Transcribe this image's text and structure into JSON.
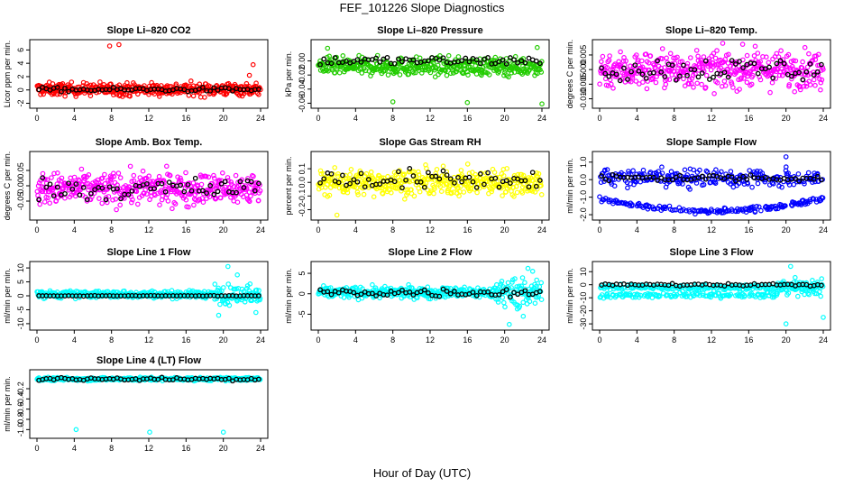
{
  "header": {
    "title": "FEF_101226  Slope Diagnostics"
  },
  "footer": {
    "xlabel": "Hour of Day (UTC)"
  },
  "chart_data": [
    {
      "type": "scatter",
      "title": "Slope Li–820 CO2",
      "ylabel": "Licor ppm per min.",
      "color": "#ff0000",
      "xlim": [
        0,
        24
      ],
      "xticks": [
        "0",
        "4",
        "8",
        "12",
        "16",
        "20",
        "24"
      ],
      "ylim": [
        -2.2,
        7
      ],
      "yticks": [
        {
          "v": -2,
          "t": "-2"
        },
        {
          "v": 0,
          "t": "0"
        },
        {
          "v": 2,
          "t": "2"
        },
        {
          "v": 4,
          "t": "4"
        },
        {
          "v": 6,
          "t": "6"
        }
      ],
      "series": [
        {
          "name": "colored",
          "center": 0.1,
          "spread": 0.9,
          "x": [
            7.8,
            8.8,
            23.2,
            22.8
          ],
          "y": [
            6.6,
            6.8,
            3.8,
            2.2
          ]
        },
        {
          "name": "black",
          "center": 0.05,
          "spread": 0.3
        }
      ]
    },
    {
      "type": "scatter",
      "title": "Slope Li–820 Pressure",
      "ylabel": "kPa per min.",
      "color": "#22cc00",
      "xlim": [
        0,
        24
      ],
      "xticks": [
        "0",
        "4",
        "8",
        "12",
        "16",
        "20",
        "24"
      ],
      "ylim": [
        -0.062,
        0.025
      ],
      "yticks": [
        {
          "v": -0.06,
          "t": "-0.06"
        },
        {
          "v": -0.04,
          "t": "-0.04"
        },
        {
          "v": -0.02,
          "t": "-0.02"
        },
        {
          "v": 0.0,
          "t": "0.00"
        }
      ],
      "series": [
        {
          "name": "colored",
          "center": -0.008,
          "spread": 0.012,
          "x": [
            8.0,
            16.0,
            24.0,
            1.0,
            23.5
          ],
          "y": [
            -0.058,
            -0.059,
            -0.061,
            0.018,
            0.019
          ]
        },
        {
          "name": "black",
          "center": 0.0,
          "spread": 0.006
        }
      ]
    },
    {
      "type": "scatter",
      "title": "Slope Li–820 Temp.",
      "ylabel": "degrees C per min.",
      "color": "#ff00ff",
      "xlim": [
        0,
        24
      ],
      "xticks": [
        "0",
        "4",
        "8",
        "12",
        "16",
        "20",
        "24"
      ],
      "ylim": [
        -0.012,
        0.009
      ],
      "yticks": [
        {
          "v": -0.01,
          "t": "-0.010"
        },
        {
          "v": -0.005,
          "t": "-0.005"
        },
        {
          "v": 0.0,
          "t": "0.000"
        },
        {
          "v": 0.005,
          "t": "0.005"
        }
      ],
      "series": [
        {
          "name": "colored",
          "center": 0.0,
          "spread": 0.006,
          "x": [],
          "y": []
        },
        {
          "name": "black",
          "center": 0.0,
          "spread": 0.004
        }
      ]
    },
    {
      "type": "scatter",
      "title": "Slope Amb. Box Temp.",
      "ylabel": "degrees C per min.",
      "color": "#ff00ff",
      "xlim": [
        0,
        24
      ],
      "xticks": [
        "0",
        "4",
        "8",
        "12",
        "16",
        "20",
        "24"
      ],
      "ylim": [
        -0.1,
        0.1
      ],
      "yticks": [
        {
          "v": -0.05,
          "t": "-0.05"
        },
        {
          "v": 0.0,
          "t": "0.00"
        },
        {
          "v": 0.05,
          "t": "0.05"
        }
      ],
      "series": [
        {
          "name": "colored",
          "center": -0.01,
          "spread": 0.05,
          "x": [],
          "y": []
        },
        {
          "name": "black",
          "center": -0.01,
          "spread": 0.035
        }
      ]
    },
    {
      "type": "scatter",
      "title": "Slope Gas Stream RH",
      "ylabel": "percent per min.",
      "color": "#ffff00",
      "xlim": [
        0,
        24
      ],
      "xticks": [
        "0",
        "4",
        "8",
        "12",
        "16",
        "20",
        "24"
      ],
      "ylim": [
        -0.25,
        0.2
      ],
      "yticks": [
        {
          "v": -0.2,
          "t": "-0.2"
        },
        {
          "v": -0.1,
          "t": "-0.1"
        },
        {
          "v": 0.0,
          "t": "0.0"
        },
        {
          "v": 0.1,
          "t": "0.1"
        }
      ],
      "series": [
        {
          "name": "colored",
          "center": 0.0,
          "spread": 0.09,
          "x": [
            2.0
          ],
          "y": [
            -0.24
          ]
        },
        {
          "name": "black",
          "center": 0.02,
          "spread": 0.07
        }
      ]
    },
    {
      "type": "scatter",
      "title": "Slope Sample Flow",
      "ylabel": "ml/min per min.",
      "color": "#0000ff",
      "xlim": [
        0,
        24
      ],
      "xticks": [
        "0",
        "4",
        "8",
        "12",
        "16",
        "20",
        "24"
      ],
      "ylim": [
        -2.1,
        1.4
      ],
      "yticks": [
        {
          "v": -2.0,
          "t": "-2.0"
        },
        {
          "v": -1.0,
          "t": "-1.0"
        },
        {
          "v": 0.0,
          "t": "0.0"
        },
        {
          "v": 1.0,
          "t": "1.0"
        }
      ],
      "series": [
        {
          "name": "colored",
          "center": 0.1,
          "spread": 0.45,
          "x": [
            20.0
          ],
          "y": [
            1.3
          ]
        },
        {
          "name": "black",
          "center": 0.1,
          "spread": 0.2
        }
      ]
    },
    {
      "type": "scatter",
      "title": "Slope Line 1 Flow",
      "ylabel": "ml/min per min.",
      "color": "#00ffff",
      "xlim": [
        0,
        24
      ],
      "xticks": [
        "0",
        "4",
        "8",
        "12",
        "16",
        "20",
        "24"
      ],
      "ylim": [
        -11,
        11
      ],
      "yticks": [
        {
          "v": -10,
          "t": "-10"
        },
        {
          "v": -5,
          "t": "-5"
        },
        {
          "v": 0,
          "t": "0"
        },
        {
          "v": 5,
          "t": "5"
        },
        {
          "v": 10,
          "t": "10"
        }
      ],
      "series": [
        {
          "name": "colored",
          "center": 0.5,
          "spread": 1.2,
          "x": [
            20.5,
            19.5,
            21.5,
            23.5
          ],
          "y": [
            10.5,
            -7.0,
            7.5,
            -6.0
          ]
        },
        {
          "name": "black",
          "center": 0.0,
          "spread": 0.1
        }
      ]
    },
    {
      "type": "scatter",
      "title": "Slope Line 2 Flow",
      "ylabel": "ml/min per min.",
      "color": "#00ffff",
      "xlim": [
        0,
        24
      ],
      "xticks": [
        "0",
        "4",
        "8",
        "12",
        "16",
        "20",
        "24"
      ],
      "ylim": [
        -8,
        7
      ],
      "yticks": [
        {
          "v": -5,
          "t": "-5"
        },
        {
          "v": 0,
          "t": "0"
        },
        {
          "v": 5,
          "t": "5"
        }
      ],
      "series": [
        {
          "name": "colored",
          "center": 0.3,
          "spread": 1.3,
          "x": [
            22.5,
            22.0,
            23.0,
            20.5
          ],
          "y": [
            6.2,
            -5.5,
            5.5,
            -7.5
          ]
        },
        {
          "name": "black",
          "center": 0.3,
          "spread": 1.0
        }
      ]
    },
    {
      "type": "scatter",
      "title": "Slope Line 3 Flow",
      "ylabel": "ml/min per min.",
      "color": "#00ffff",
      "xlim": [
        0,
        24
      ],
      "xticks": [
        "0",
        "4",
        "8",
        "12",
        "16",
        "20",
        "24"
      ],
      "ylim": [
        -32,
        15
      ],
      "yticks": [
        {
          "v": -30,
          "t": "-30"
        },
        {
          "v": -20,
          "t": "-20"
        },
        {
          "v": -10,
          "t": "-10"
        },
        {
          "v": 0,
          "t": "0"
        },
        {
          "v": 10,
          "t": "10"
        }
      ],
      "series": [
        {
          "name": "colored",
          "center": -2.0,
          "spread": 2.0,
          "x": [
            20.5,
            20.0,
            24.0
          ],
          "y": [
            14.0,
            -30.0,
            -25.0
          ]
        },
        {
          "name": "black",
          "center": 0.0,
          "spread": 1.0
        }
      ]
    },
    {
      "type": "scatter",
      "title": "Slope Line 4 (LT) Flow",
      "ylabel": "ml/min per min.",
      "color": "#00ffff",
      "xlim": [
        0,
        24
      ],
      "xticks": [
        "0",
        "4",
        "8",
        "12",
        "16",
        "20",
        "24"
      ],
      "ylim": [
        -1.1,
        0.1
      ],
      "yticks": [
        {
          "v": -1.0,
          "t": "-1.0"
        },
        {
          "v": -0.8,
          "t": "-0.8"
        },
        {
          "v": -0.6,
          "t": "-0.6"
        },
        {
          "v": -0.4,
          "t": "-0.4"
        },
        {
          "v": -0.2,
          "t": "-0.2"
        }
      ],
      "series": [
        {
          "name": "colored",
          "center": -0.01,
          "spread": 0.03,
          "x": [
            4.2,
            12.1,
            20.0
          ],
          "y": [
            -1.0,
            -1.05,
            -1.05
          ]
        },
        {
          "name": "black",
          "center": -0.01,
          "spread": 0.03
        }
      ]
    }
  ]
}
